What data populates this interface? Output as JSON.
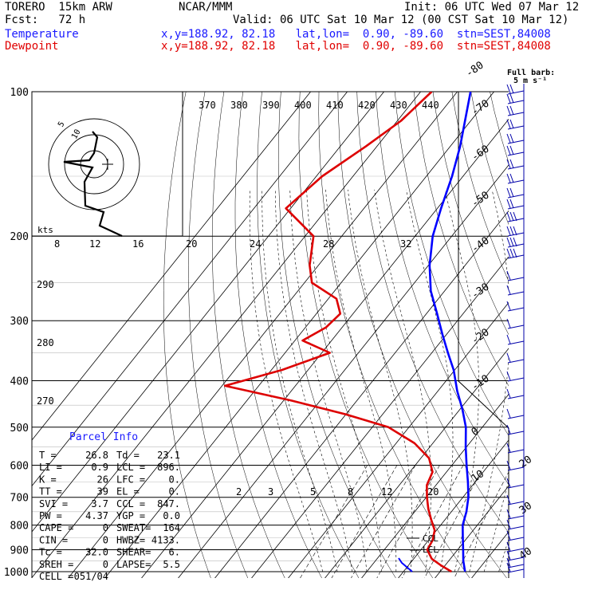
{
  "header": {
    "model": "TORERO  15km ARW",
    "center": "NCAR/MMM",
    "init": "Init: 06 UTC Wed 07 Mar 12",
    "fcst": "Fcst:   72 h",
    "valid": "Valid: 06 UTC Sat 10 Mar 12 (00 CST Sat 10 Mar 12)",
    "temp_label": "Temperature",
    "dew_label": "Dewpoint",
    "temp_loc": "x,y=188.92, 82.18   lat,lon=  0.90, -89.60  stn=SEST,84008",
    "dew_loc": "x,y=188.92, 82.18   lat,lon=  0.90, -89.60  stn=SEST,84008"
  },
  "barb_legend": {
    "line1": "Full barb:",
    "line2": "5 m s⁻¹"
  },
  "hodograph": {
    "units": "kts",
    "rings": [
      "5",
      "10"
    ]
  },
  "parcel_info": {
    "title": "Parcel Info",
    "rows": [
      [
        "T  =",
        "26.8",
        "Td =",
        "23.1"
      ],
      [
        "LI =",
        "0.9",
        "LCL =",
        "896."
      ],
      [
        "K  =",
        "26",
        "LFC =",
        "0."
      ],
      [
        "TT =",
        "39",
        "EL  =",
        "0."
      ],
      [
        "SVI =",
        "3.7",
        "CCL =",
        "847."
      ],
      [
        "PW =",
        "4.37",
        "YGP =",
        "0.0"
      ],
      [
        "CAPE =",
        "0",
        "SWEAT=",
        "164"
      ],
      [
        "CIN  =",
        "0",
        "HWBZ=",
        "4133."
      ],
      [
        "Tc  =",
        "32.0",
        "SHEAR=",
        "6."
      ],
      [
        "SREH =",
        "0",
        "LAPSE=",
        "5.5"
      ],
      [
        "CELL =",
        "051/04",
        "",
        ""
      ]
    ]
  },
  "annotations": {
    "ccl": "CCL",
    "lcl": "LCL"
  },
  "chart_data": {
    "type": "line",
    "diagram": "skew-T log-p",
    "pressure_levels": [
      100,
      200,
      300,
      400,
      500,
      600,
      700,
      800,
      900,
      1000
    ],
    "isotherm_labels": [
      -80,
      -70,
      -60,
      -50,
      -40,
      -30,
      -20,
      -10,
      0,
      10,
      20,
      30,
      40
    ],
    "theta_labels_top": [
      370,
      380,
      390,
      400,
      410,
      420,
      430,
      440
    ],
    "theta_labels_left": [
      290,
      280,
      270
    ],
    "mixing_ratio_labels": [
      2,
      3,
      5,
      8,
      12,
      20
    ],
    "hodo_speed_labels": [
      8,
      12,
      16,
      20,
      24,
      28,
      32
    ],
    "series": [
      {
        "name": "Temperature",
        "color": "#0000ff",
        "points": [
          [
            100,
            -76.4
          ],
          [
            130,
            -67.3
          ],
          [
            150,
            -63.0
          ],
          [
            175,
            -59.0
          ],
          [
            200,
            -55.2
          ],
          [
            230,
            -49.7
          ],
          [
            260,
            -43.8
          ],
          [
            290,
            -37.1
          ],
          [
            320,
            -31.2
          ],
          [
            350,
            -25.6
          ],
          [
            380,
            -20.3
          ],
          [
            420,
            -14.8
          ],
          [
            460,
            -9.2
          ],
          [
            500,
            -4.5
          ],
          [
            550,
            -0.2
          ],
          [
            600,
            4.0
          ],
          [
            650,
            8.0
          ],
          [
            700,
            11.5
          ],
          [
            750,
            14.1
          ],
          [
            800,
            16.0
          ],
          [
            850,
            18.8
          ],
          [
            900,
            21.5
          ],
          [
            950,
            24.0
          ],
          [
            1000,
            26.8
          ]
        ]
      },
      {
        "name": "Dewpoint",
        "color": "#dd0000",
        "points": [
          [
            100,
            -87.0
          ],
          [
            115,
            -89.0
          ],
          [
            130,
            -93.0
          ],
          [
            150,
            -98.4
          ],
          [
            175,
            -101.3
          ],
          [
            200,
            -87.7
          ],
          [
            230,
            -82.4
          ],
          [
            250,
            -78.0
          ],
          [
            270,
            -67.8
          ],
          [
            290,
            -63.5
          ],
          [
            310,
            -64.4
          ],
          [
            330,
            -67.9
          ],
          [
            350,
            -57.8
          ],
          [
            380,
            -67.1
          ],
          [
            410,
            -79.2
          ],
          [
            440,
            -57.9
          ],
          [
            470,
            -40.1
          ],
          [
            500,
            -25.6
          ],
          [
            540,
            -15.0
          ],
          [
            580,
            -7.8
          ],
          [
            620,
            -3.8
          ],
          [
            660,
            -2.5
          ],
          [
            700,
            0.2
          ],
          [
            740,
            3.1
          ],
          [
            780,
            6.3
          ],
          [
            820,
            9.5
          ],
          [
            860,
            11.1
          ],
          [
            900,
            11.7
          ],
          [
            940,
            14.9
          ],
          [
            970,
            18.8
          ],
          [
            1000,
            23.1
          ]
        ]
      }
    ],
    "hodograph_trace": [
      [
        -2,
        3
      ],
      [
        -4,
        8
      ],
      [
        -2,
        6
      ],
      [
        -6,
        0
      ],
      [
        -1,
        -1
      ],
      [
        -4,
        -11
      ],
      [
        2,
        -12
      ],
      [
        -1,
        -14
      ],
      [
        6,
        -16
      ]
    ]
  }
}
